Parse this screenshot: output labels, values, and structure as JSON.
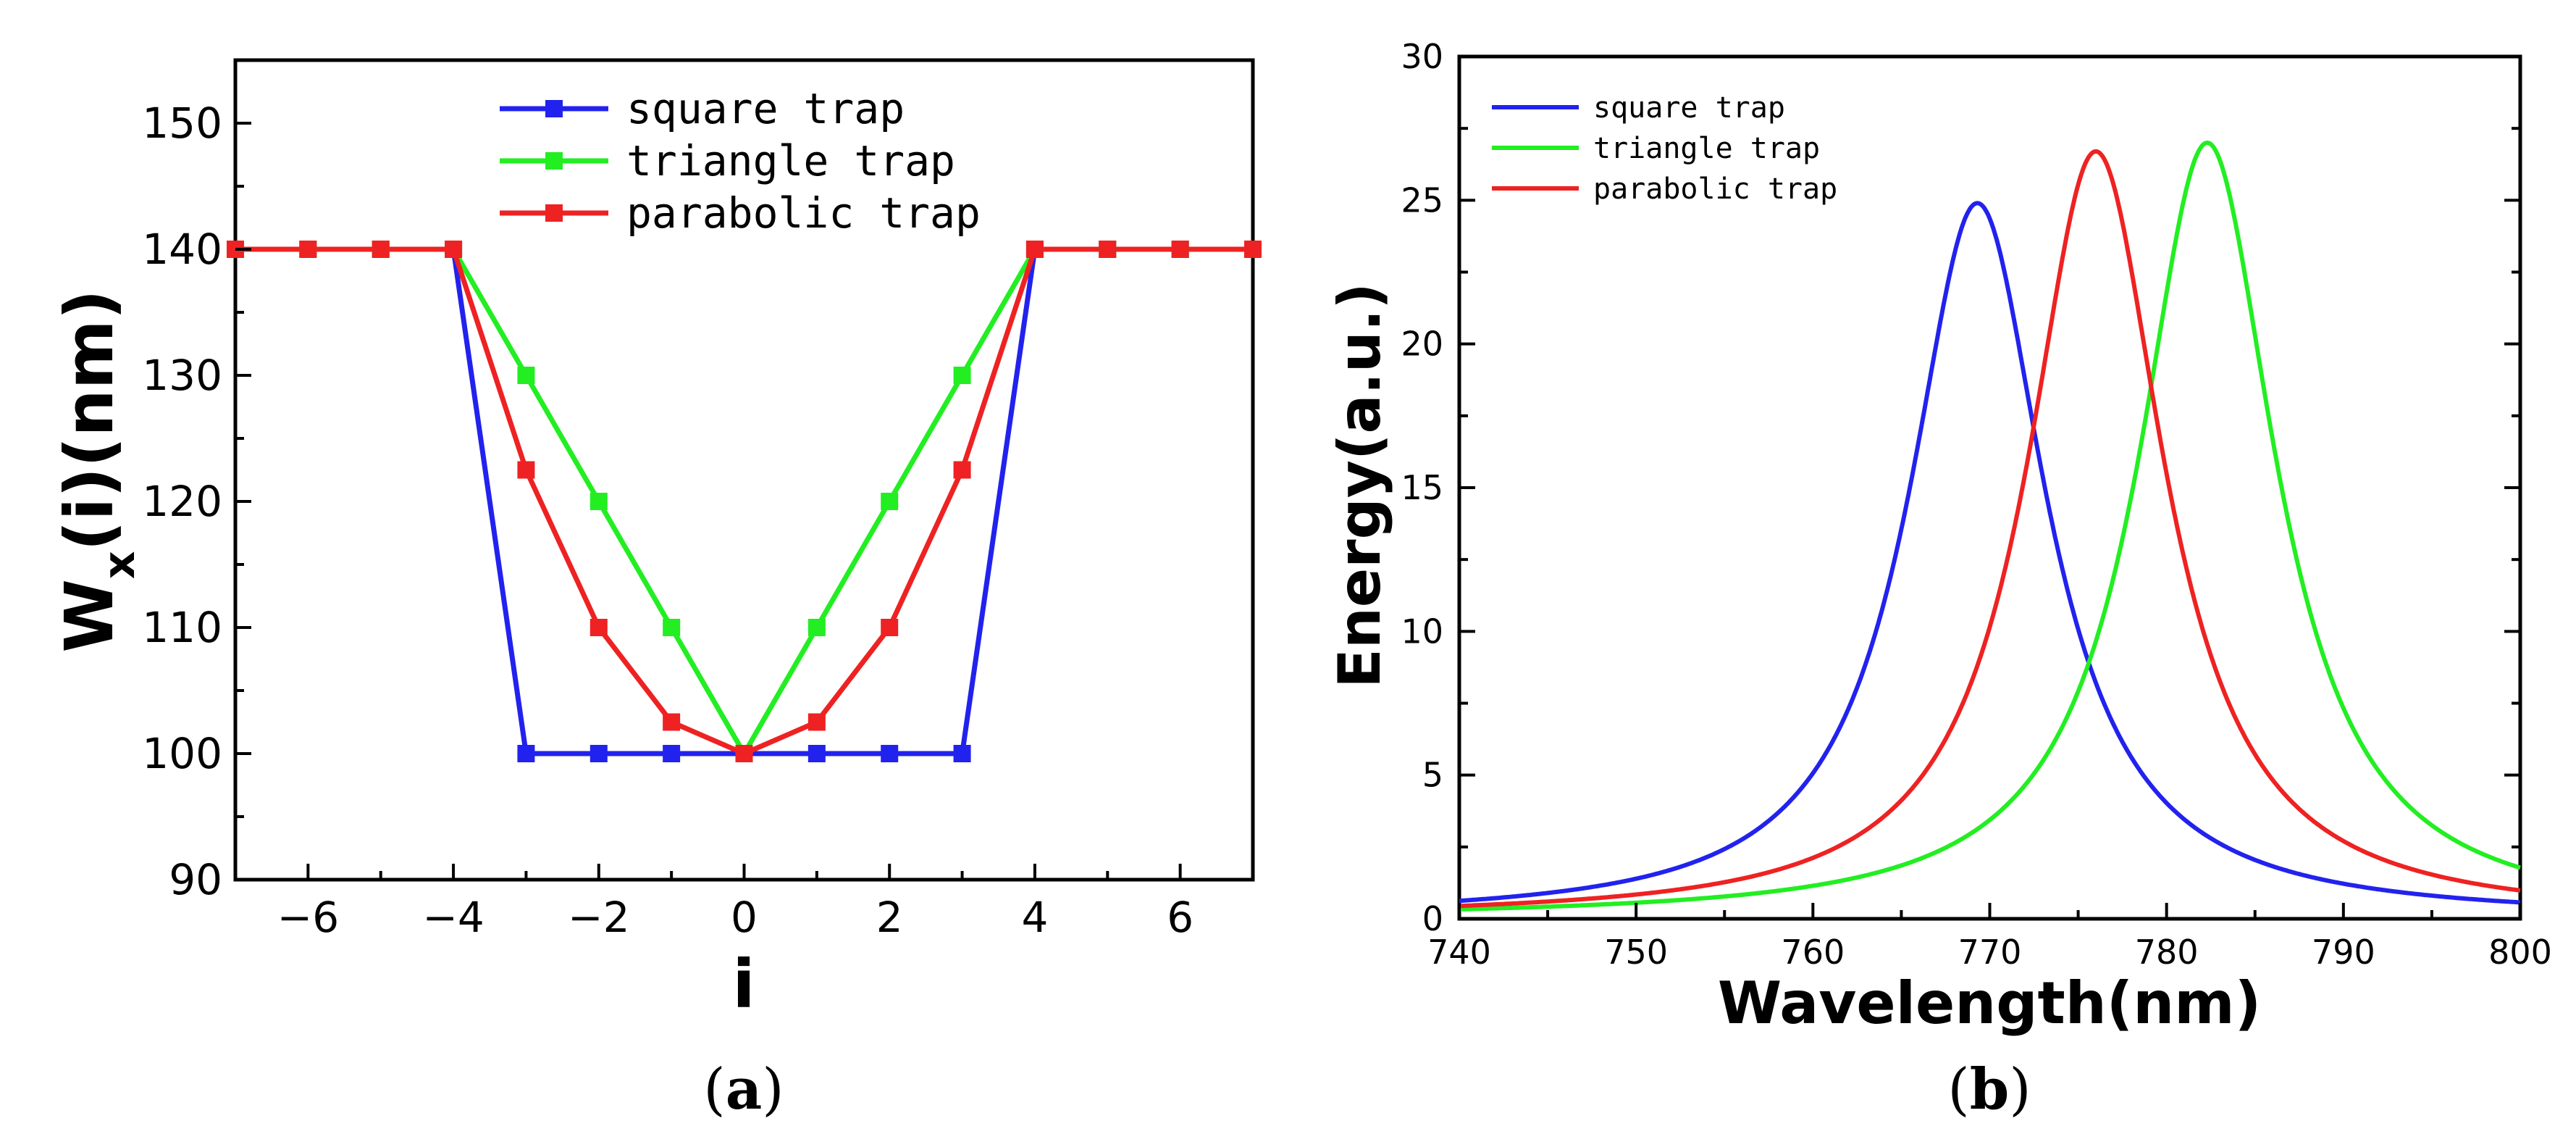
{
  "chart_data": [
    {
      "type": "line",
      "panel": "a",
      "caption_label": "a",
      "xlabel": "i",
      "ylabel_main": "W",
      "ylabel_sub": "x",
      "ylabel_rest": "(i)(nm)",
      "xlim": [
        -7,
        7
      ],
      "ylim": [
        90,
        155
      ],
      "xticks": [
        -6,
        -4,
        -2,
        0,
        2,
        4,
        6
      ],
      "yticks": [
        90,
        100,
        110,
        120,
        130,
        140,
        150
      ],
      "markers": "square",
      "legend_position": "top-center",
      "series": [
        {
          "name": "square trap",
          "color": "#2222ee",
          "points": [
            [
              -7,
              140
            ],
            [
              -6,
              140
            ],
            [
              -5,
              140
            ],
            [
              -4,
              140
            ],
            [
              -3,
              100
            ],
            [
              -2,
              100
            ],
            [
              -1,
              100
            ],
            [
              0,
              100
            ],
            [
              1,
              100
            ],
            [
              2,
              100
            ],
            [
              3,
              100
            ],
            [
              4,
              140
            ],
            [
              5,
              140
            ],
            [
              6,
              140
            ],
            [
              7,
              140
            ]
          ]
        },
        {
          "name": "triangle trap",
          "color": "#22ee22",
          "points": [
            [
              -7,
              140
            ],
            [
              -6,
              140
            ],
            [
              -5,
              140
            ],
            [
              -4,
              140
            ],
            [
              -3,
              130
            ],
            [
              -2,
              120
            ],
            [
              -1,
              110
            ],
            [
              0,
              100
            ],
            [
              1,
              110
            ],
            [
              2,
              120
            ],
            [
              3,
              130
            ],
            [
              4,
              140
            ],
            [
              5,
              140
            ],
            [
              6,
              140
            ],
            [
              7,
              140
            ]
          ]
        },
        {
          "name": "parabolic trap",
          "color": "#ee2222",
          "points": [
            [
              -7,
              140
            ],
            [
              -6,
              140
            ],
            [
              -5,
              140
            ],
            [
              -4,
              140
            ],
            [
              -3,
              122.5
            ],
            [
              -2,
              110
            ],
            [
              -1,
              102.5
            ],
            [
              0,
              100
            ],
            [
              1,
              102.5
            ],
            [
              2,
              110
            ],
            [
              3,
              122.5
            ],
            [
              4,
              140
            ],
            [
              5,
              140
            ],
            [
              6,
              140
            ],
            [
              7,
              140
            ]
          ]
        }
      ]
    },
    {
      "type": "line",
      "panel": "b",
      "caption_label": "b",
      "xlabel": "Wavelength(nm)",
      "ylabel": "Energy(a.u.)",
      "xlim": [
        740,
        800
      ],
      "ylim": [
        0,
        30
      ],
      "xticks": [
        740,
        750,
        760,
        770,
        780,
        790,
        800
      ],
      "yticks": [
        0,
        5,
        10,
        15,
        20,
        25,
        30
      ],
      "legend_position": "top-left",
      "series": [
        {
          "name": "square trap",
          "color": "#2222ee",
          "peak_wavelength": 769.3,
          "peak_energy": 24.9,
          "half_width": 4.7
        },
        {
          "name": "triangle trap",
          "color": "#22ee22",
          "peak_wavelength": 782.3,
          "peak_energy": 27.0,
          "half_width": 4.7
        },
        {
          "name": "parabolic trap",
          "color": "#ee2222",
          "peak_wavelength": 776.0,
          "peak_energy": 26.7,
          "half_width": 4.7
        }
      ]
    }
  ]
}
